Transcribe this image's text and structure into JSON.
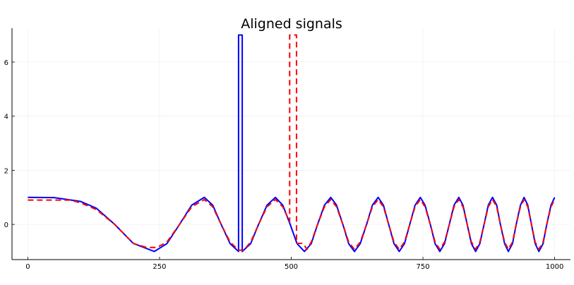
{
  "chart_data": {
    "type": "line",
    "title": "Aligned signals",
    "xlim": [
      -30,
      1030
    ],
    "ylim": [
      -1.3,
      7.25
    ],
    "xticks": [
      0,
      250,
      500,
      750,
      1000
    ],
    "yticks": [
      0,
      2,
      4,
      6
    ],
    "grid": true,
    "series": [
      {
        "color": "#0000ff",
        "dash": false,
        "x": [
          0,
          50,
          100,
          130,
          165,
          200,
          240,
          264,
          288,
          311,
          335,
          351,
          367,
          384,
          400,
          400,
          407,
          407,
          423,
          438,
          454,
          470,
          484,
          498,
          511,
          525,
          538,
          550,
          563,
          575,
          586,
          598,
          609,
          620,
          631,
          643,
          654,
          665,
          675,
          685,
          695,
          705,
          715,
          725,
          735,
          745,
          754,
          764,
          773,
          782,
          791,
          800,
          809,
          818,
          826,
          834,
          842,
          850,
          858,
          866,
          874,
          882,
          890,
          897,
          905,
          912,
          920,
          927,
          935,
          942,
          949,
          956,
          963,
          970,
          978,
          985,
          993,
          1000
        ],
        "values": [
          1,
          0.99,
          0.85,
          0.6,
          0,
          -0.7,
          -1,
          -0.71,
          0,
          0.71,
          1,
          0.71,
          0,
          -0.71,
          -1,
          7,
          7,
          -1,
          -0.71,
          0,
          0.71,
          1,
          0.71,
          0,
          -0.71,
          -1,
          -0.71,
          0,
          0.71,
          1,
          0.71,
          0,
          -0.71,
          -1,
          -0.71,
          0,
          0.71,
          1,
          0.71,
          0,
          -0.71,
          -1,
          -0.71,
          0,
          0.71,
          1,
          0.71,
          0,
          -0.71,
          -1,
          -0.71,
          0,
          0.71,
          1,
          0.71,
          0,
          -0.71,
          -1,
          -0.71,
          0,
          0.71,
          1,
          0.71,
          0,
          -0.71,
          -1,
          -0.71,
          0,
          0.71,
          1,
          0.71,
          0,
          -0.71,
          -1,
          -0.71,
          0,
          0.71,
          1
        ]
      },
      {
        "color": "#ff0000",
        "dash": true,
        "x": [
          0,
          80,
          100,
          130,
          165,
          200,
          225,
          245,
          264,
          288,
          311,
          335,
          351,
          367,
          384,
          400,
          410,
          423,
          438,
          454,
          470,
          484,
          497,
          497,
          510,
          510,
          522,
          530,
          538,
          550,
          563,
          575,
          586,
          598,
          609,
          620,
          631,
          643,
          654,
          665,
          675,
          685,
          695,
          705,
          715,
          725,
          735,
          745,
          754,
          764,
          773,
          782,
          791,
          800,
          809,
          818,
          826,
          834,
          842,
          850,
          858,
          866,
          874,
          882,
          890,
          897,
          905,
          912,
          920,
          927,
          935,
          942,
          949,
          956,
          963,
          970,
          978,
          985,
          993,
          1000
        ],
        "values": [
          0.9,
          0.9,
          0.8,
          0.55,
          0,
          -0.7,
          -0.85,
          -0.85,
          -0.65,
          0,
          0.65,
          0.92,
          0.65,
          0,
          -0.65,
          -0.95,
          -0.95,
          -0.65,
          0,
          0.65,
          0.92,
          0.65,
          0.1,
          7,
          7,
          -0.7,
          -0.7,
          -0.92,
          -0.65,
          0,
          0.65,
          0.92,
          0.65,
          0,
          -0.65,
          -0.92,
          -0.65,
          0,
          0.65,
          0.92,
          0.65,
          0,
          -0.65,
          -0.92,
          -0.65,
          0,
          0.65,
          0.92,
          0.65,
          0,
          -0.65,
          -0.92,
          -0.65,
          0,
          0.65,
          0.92,
          0.65,
          0,
          -0.65,
          -0.92,
          -0.65,
          0,
          0.65,
          0.92,
          0.65,
          0,
          -0.65,
          -0.92,
          -0.65,
          0,
          0.65,
          0.92,
          0.65,
          0,
          -0.65,
          -0.92,
          -0.65,
          0,
          0.65,
          0.92
        ]
      }
    ]
  }
}
